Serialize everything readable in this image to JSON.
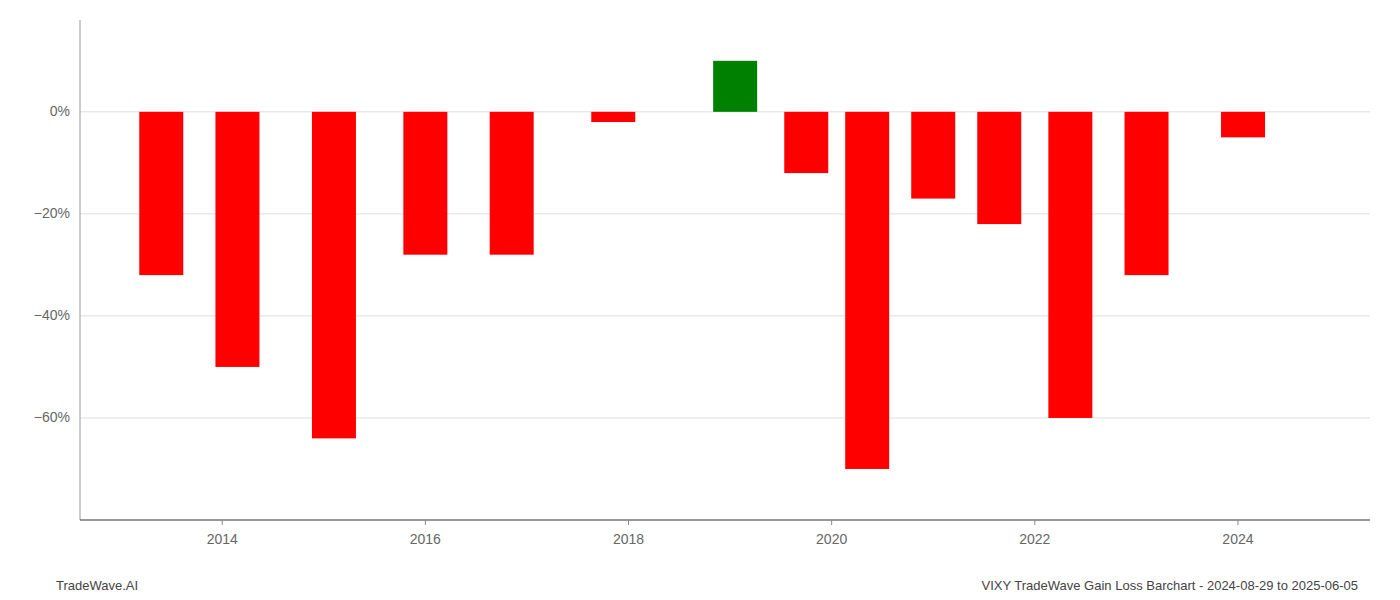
{
  "chart_data": {
    "type": "bar",
    "title": "VIXY TradeWave Gain Loss Barchart - 2024-08-29 to 2025-06-05",
    "annotations": [
      "TradeWave.AI"
    ],
    "x": [
      2013.4,
      2014.15,
      2015.1,
      2016.0,
      2016.85,
      2017.85,
      2019.05,
      2019.75,
      2020.35,
      2021.0,
      2021.65,
      2022.35,
      2023.1,
      2024.05
    ],
    "values": [
      -32,
      -50,
      -64,
      -28,
      -28,
      -2,
      10,
      -12,
      -70,
      -17,
      -22,
      -60,
      -32,
      -5
    ],
    "colors": [
      "#ff0000",
      "#ff0000",
      "#ff0000",
      "#ff0000",
      "#ff0000",
      "#ff0000",
      "#008000",
      "#ff0000",
      "#ff0000",
      "#ff0000",
      "#ff0000",
      "#ff0000",
      "#ff0000",
      "#ff0000"
    ],
    "xlim": [
      2012.6,
      2025.3
    ],
    "xticks": [
      2014,
      2016,
      2018,
      2020,
      2022,
      2024
    ],
    "ylim": [
      -80,
      18
    ],
    "yticks": [
      {
        "value": 0,
        "label": "0%"
      },
      {
        "value": -20,
        "label": "−20%"
      },
      {
        "value": -40,
        "label": "−40%"
      },
      {
        "value": -60,
        "label": "−60%"
      }
    ],
    "grid": true
  }
}
